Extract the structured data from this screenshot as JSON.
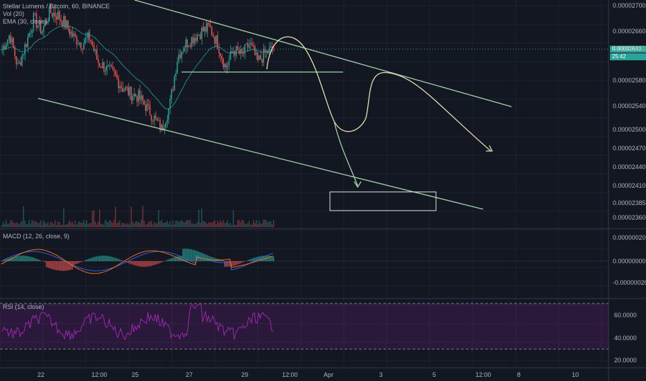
{
  "chart": {
    "title": "Stellar Lumens / Bitcoin, 60, BINANCE",
    "vol_legend": "Vol (20)",
    "ema_legend": "EMA (30, close)",
    "macd_legend": "MACD (12, 26, close, 9)",
    "rsi_legend": "RSI (14, close)",
    "current_price": "0.00002631",
    "countdown": "25:42",
    "colors": {
      "bg": "#131722",
      "up": "#26a69a",
      "down": "#ef5350",
      "ema": "#26a69a",
      "drawing": "#a5d6a7",
      "rsi": "#9c27b0",
      "macd": "#2962ff",
      "signal": "#ff6d00",
      "tag": "#26a69a"
    }
  },
  "chart_data": [
    {
      "type": "candlestick",
      "title": "Stellar Lumens / Bitcoin, 60, BINANCE",
      "price_ticks": [
        "0.00002700",
        "0.00002660",
        "0.00002631",
        "0.00002580",
        "0.00002540",
        "0.00002500",
        "0.00002470",
        "0.00002440",
        "0.00002410",
        "0.00002385",
        "0.00002360"
      ],
      "x_ticks": [
        "22",
        "12:00",
        "25",
        "27",
        "29",
        "12:00",
        "Apr",
        "3",
        "5",
        "12:00",
        "8",
        "10"
      ],
      "close_path": [
        2630,
        2655,
        2600,
        2640,
        2680,
        2660,
        2690,
        2685,
        2670,
        2650,
        2640,
        2650,
        2610,
        2600,
        2590,
        2570,
        2560,
        2555,
        2540,
        2520,
        2500,
        2540,
        2620,
        2640,
        2650,
        2660,
        2665,
        2640,
        2600,
        2630,
        2620,
        2640,
        2610,
        2625,
        2631
      ],
      "trendlines": [
        {
          "name": "upper channel"
        },
        {
          "name": "lower channel"
        },
        {
          "name": "support"
        }
      ],
      "ylim": [
        2350,
        2715
      ],
      "grid": true
    },
    {
      "type": "bar",
      "title": "MACD (12, 26, close, 9)",
      "y_ticks": [
        "0.00000020",
        "0.00000000",
        "-0.00000020"
      ],
      "grid": true
    },
    {
      "type": "line",
      "title": "RSI (14, close)",
      "y_ticks": [
        "60.0000",
        "40.0000",
        "20.0000"
      ],
      "bands": [
        30,
        70
      ],
      "grid": true
    }
  ]
}
